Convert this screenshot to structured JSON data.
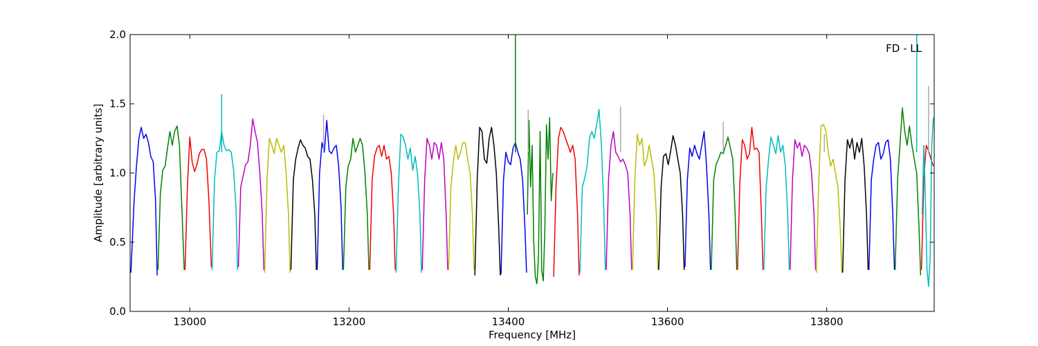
{
  "chart_data": {
    "type": "line",
    "title": "",
    "annotation": "FD - LL",
    "xlabel": "Frequency [MHz]",
    "ylabel": "Amplitude [arbitrary units]",
    "xlim": [
      12925,
      13935
    ],
    "ylim": [
      0.0,
      2.0
    ],
    "xticks": [
      13000,
      13200,
      13400,
      13600,
      13800
    ],
    "xtick_labels": [
      "13000",
      "13200",
      "13400",
      "13600",
      "13800"
    ],
    "yticks": [
      0.0,
      0.5,
      1.0,
      1.5,
      2.0
    ],
    "ytick_labels": [
      "0.0",
      "0.5",
      "1.0",
      "1.5",
      "2.0"
    ],
    "grid": false,
    "legend": "none",
    "color_cycle": [
      "#0000ee",
      "#008000",
      "#ee0000",
      "#00bbbb",
      "#bb00bb",
      "#bbbb00",
      "#000000"
    ],
    "spike_color": "#aaaaaa",
    "band_width_mhz": 16,
    "first_band_start_mhz": 12926,
    "series": [
      {
        "color": "#0000ee",
        "x": [
          12926,
          12930,
          12933,
          12936,
          12939,
          12942,
          12945,
          12948,
          12951,
          12954,
          12957,
          12959
        ],
        "y": [
          0.28,
          0.8,
          1.05,
          1.25,
          1.33,
          1.25,
          1.28,
          1.22,
          1.12,
          1.08,
          0.8,
          0.26
        ]
      },
      {
        "color": "#008000",
        "x": [
          12960,
          12963,
          12966,
          12969,
          12972,
          12975,
          12978,
          12981,
          12984,
          12987,
          12990,
          12993
        ],
        "y": [
          0.3,
          0.85,
          1.02,
          1.05,
          1.18,
          1.3,
          1.2,
          1.3,
          1.34,
          1.2,
          0.75,
          0.3
        ]
      },
      {
        "color": "#ee0000",
        "x": [
          12994,
          12997,
          13000,
          13003,
          13006,
          13009,
          13012,
          13015,
          13018,
          13021,
          13024,
          13027
        ],
        "y": [
          0.3,
          0.9,
          1.26,
          1.08,
          1.01,
          1.06,
          1.14,
          1.17,
          1.17,
          1.1,
          0.8,
          0.32
        ]
      },
      {
        "color": "#00bbbb",
        "x": [
          13028,
          13031,
          13034,
          13037,
          13040,
          13043,
          13046,
          13049,
          13052,
          13055,
          13058,
          13060
        ],
        "y": [
          0.3,
          0.95,
          1.15,
          1.16,
          1.3,
          1.2,
          1.16,
          1.17,
          1.15,
          1.02,
          0.75,
          0.3
        ]
      },
      {
        "color": "#bb00bb",
        "x": [
          13061,
          13064,
          13067,
          13070,
          13073,
          13076,
          13079,
          13082,
          13085,
          13088,
          13091,
          13093
        ],
        "y": [
          0.32,
          0.9,
          0.98,
          1.06,
          1.08,
          1.2,
          1.39,
          1.3,
          1.22,
          1.0,
          0.7,
          0.3
        ]
      },
      {
        "color": "#bbbb00",
        "x": [
          13094,
          13097,
          13100,
          13103,
          13106,
          13109,
          13112,
          13115,
          13118,
          13121,
          13124,
          13126
        ],
        "y": [
          0.28,
          0.95,
          1.25,
          1.2,
          1.14,
          1.25,
          1.2,
          1.15,
          1.2,
          1.0,
          0.7,
          0.28
        ]
      },
      {
        "color": "#000000",
        "x": [
          13127,
          13130,
          13133,
          13136,
          13139,
          13142,
          13145,
          13148,
          13151,
          13154,
          13157,
          13159
        ],
        "y": [
          0.3,
          0.95,
          1.1,
          1.18,
          1.24,
          1.2,
          1.18,
          1.12,
          1.1,
          0.95,
          0.7,
          0.3
        ]
      },
      {
        "color": "#0000ee",
        "x": [
          13160,
          13163,
          13166,
          13169,
          13172,
          13175,
          13178,
          13181,
          13184,
          13187,
          13190,
          13192
        ],
        "y": [
          0.3,
          1.0,
          1.22,
          1.15,
          1.38,
          1.16,
          1.14,
          1.18,
          1.2,
          1.05,
          0.75,
          0.3
        ]
      },
      {
        "color": "#008000",
        "x": [
          13193,
          13196,
          13199,
          13202,
          13205,
          13208,
          13211,
          13214,
          13217,
          13220,
          13223,
          13225
        ],
        "y": [
          0.3,
          0.9,
          1.05,
          1.1,
          1.25,
          1.15,
          1.2,
          1.25,
          1.2,
          1.0,
          0.7,
          0.3
        ]
      },
      {
        "color": "#ee0000",
        "x": [
          13226,
          13229,
          13232,
          13235,
          13238,
          13241,
          13244,
          13247,
          13250,
          13253,
          13256,
          13258
        ],
        "y": [
          0.3,
          0.95,
          1.12,
          1.18,
          1.2,
          1.12,
          1.2,
          1.1,
          1.12,
          1.0,
          0.7,
          0.3
        ]
      },
      {
        "color": "#00bbbb",
        "x": [
          13259,
          13262,
          13265,
          13268,
          13271,
          13274,
          13277,
          13280,
          13283,
          13286,
          13289,
          13291
        ],
        "y": [
          0.28,
          0.9,
          1.28,
          1.26,
          1.2,
          1.1,
          1.18,
          1.02,
          1.12,
          1.0,
          0.7,
          0.28
        ]
      },
      {
        "color": "#bb00bb",
        "x": [
          13292,
          13295,
          13298,
          13301,
          13304,
          13307,
          13310,
          13313,
          13316,
          13319,
          13322,
          13324
        ],
        "y": [
          0.3,
          0.95,
          1.25,
          1.2,
          1.1,
          1.22,
          1.2,
          1.1,
          1.22,
          1.1,
          0.7,
          0.3
        ]
      },
      {
        "color": "#bbbb00",
        "x": [
          13325,
          13328,
          13331,
          13334,
          13337,
          13340,
          13343,
          13346,
          13349,
          13352,
          13355,
          13357
        ],
        "y": [
          0.3,
          0.9,
          1.08,
          1.2,
          1.1,
          1.15,
          1.22,
          1.22,
          1.1,
          1.0,
          0.7,
          0.3
        ]
      },
      {
        "color": "#000000",
        "x": [
          13358,
          13361,
          13364,
          13367,
          13370,
          13373,
          13376,
          13379,
          13382,
          13385,
          13388,
          13390
        ],
        "y": [
          0.26,
          0.95,
          1.33,
          1.3,
          1.1,
          1.07,
          1.25,
          1.33,
          1.2,
          1.0,
          0.6,
          0.26
        ]
      },
      {
        "color": "#0000ee",
        "x": [
          13391,
          13394,
          13397,
          13400,
          13403,
          13406,
          13409,
          13412,
          13415,
          13418,
          13421,
          13423
        ],
        "y": [
          0.27,
          0.95,
          1.15,
          1.08,
          1.06,
          1.18,
          1.22,
          1.15,
          1.1,
          0.95,
          0.6,
          0.28
        ]
      },
      {
        "color": "#008000",
        "x": [
          13424,
          13426,
          13428,
          13430,
          13432,
          13434,
          13436,
          13438,
          13440,
          13442,
          13444,
          13446,
          13448,
          13450,
          13452,
          13454,
          13456
        ],
        "y": [
          0.7,
          1.38,
          0.9,
          1.2,
          0.5,
          0.25,
          0.2,
          0.4,
          1.3,
          0.3,
          0.22,
          0.6,
          1.35,
          1.1,
          1.4,
          0.8,
          1.0
        ]
      },
      {
        "color": "#ee0000",
        "x": [
          13457,
          13460,
          13463,
          13466,
          13469,
          13472,
          13475,
          13478,
          13481,
          13484,
          13487,
          13489
        ],
        "y": [
          0.25,
          0.9,
          1.25,
          1.33,
          1.3,
          1.25,
          1.2,
          1.15,
          1.2,
          1.1,
          0.7,
          0.26
        ]
      },
      {
        "color": "#00bbbb",
        "x": [
          13490,
          13493,
          13496,
          13499,
          13502,
          13505,
          13508,
          13511,
          13514,
          13517,
          13520,
          13522
        ],
        "y": [
          0.28,
          0.9,
          0.96,
          1.05,
          1.25,
          1.3,
          1.25,
          1.35,
          1.46,
          1.2,
          0.75,
          0.3
        ]
      },
      {
        "color": "#bb00bb",
        "x": [
          13523,
          13526,
          13529,
          13532,
          13535,
          13538,
          13541,
          13544,
          13547,
          13550,
          13553,
          13555
        ],
        "y": [
          0.3,
          0.95,
          1.2,
          1.3,
          1.15,
          1.12,
          1.08,
          1.1,
          1.06,
          1.0,
          0.7,
          0.3
        ]
      },
      {
        "color": "#bbbb00",
        "x": [
          13556,
          13559,
          13562,
          13565,
          13568,
          13571,
          13574,
          13577,
          13580,
          13583,
          13586,
          13588
        ],
        "y": [
          0.3,
          0.95,
          1.28,
          1.2,
          1.25,
          1.05,
          1.1,
          1.2,
          1.1,
          1.0,
          0.7,
          0.3
        ]
      },
      {
        "color": "#000000",
        "x": [
          13589,
          13592,
          13595,
          13598,
          13601,
          13604,
          13607,
          13610,
          13613,
          13616,
          13619,
          13621
        ],
        "y": [
          0.3,
          0.9,
          1.12,
          1.14,
          1.06,
          1.16,
          1.27,
          1.2,
          1.1,
          1.0,
          0.7,
          0.3
        ]
      },
      {
        "color": "#0000ee",
        "x": [
          13622,
          13625,
          13628,
          13631,
          13634,
          13637,
          13640,
          13643,
          13646,
          13649,
          13652,
          13654
        ],
        "y": [
          0.32,
          0.95,
          1.18,
          1.12,
          1.2,
          1.14,
          1.1,
          1.2,
          1.3,
          1.05,
          0.7,
          0.3
        ]
      },
      {
        "color": "#008000",
        "x": [
          13655,
          13658,
          13661,
          13664,
          13667,
          13670,
          13673,
          13676,
          13679,
          13682,
          13685,
          13687
        ],
        "y": [
          0.3,
          0.95,
          1.06,
          1.1,
          1.15,
          1.14,
          1.2,
          1.26,
          1.18,
          1.1,
          0.7,
          0.3
        ]
      },
      {
        "color": "#ee0000",
        "x": [
          13688,
          13691,
          13694,
          13697,
          13700,
          13703,
          13706,
          13709,
          13712,
          13715,
          13718,
          13720
        ],
        "y": [
          0.3,
          0.95,
          1.24,
          1.2,
          1.1,
          1.14,
          1.33,
          1.17,
          1.18,
          1.15,
          0.7,
          0.3
        ]
      },
      {
        "color": "#00bbbb",
        "x": [
          13721,
          13724,
          13727,
          13730,
          13733,
          13736,
          13739,
          13742,
          13745,
          13748,
          13751,
          13753
        ],
        "y": [
          0.3,
          0.9,
          1.1,
          1.26,
          1.2,
          1.14,
          1.27,
          1.15,
          1.2,
          1.05,
          0.7,
          0.3
        ]
      },
      {
        "color": "#bb00bb",
        "x": [
          13754,
          13757,
          13760,
          13763,
          13766,
          13769,
          13772,
          13775,
          13778,
          13781,
          13784,
          13786
        ],
        "y": [
          0.3,
          0.95,
          1.24,
          1.18,
          1.22,
          1.12,
          1.2,
          1.18,
          1.14,
          1.0,
          0.7,
          0.3
        ]
      },
      {
        "color": "#bbbb00",
        "x": [
          13787,
          13790,
          13793,
          13796,
          13799,
          13802,
          13805,
          13808,
          13811,
          13814,
          13817,
          13819
        ],
        "y": [
          0.28,
          0.95,
          1.34,
          1.35,
          1.3,
          1.15,
          1.05,
          1.1,
          1.0,
          0.9,
          0.6,
          0.28
        ]
      },
      {
        "color": "#000000",
        "x": [
          13820,
          13823,
          13826,
          13829,
          13832,
          13835,
          13838,
          13841,
          13844,
          13847,
          13850,
          13852
        ],
        "y": [
          0.28,
          0.95,
          1.24,
          1.18,
          1.25,
          1.1,
          1.22,
          1.15,
          1.25,
          1.05,
          0.7,
          0.3
        ]
      },
      {
        "color": "#0000ee",
        "x": [
          13853,
          13856,
          13859,
          13862,
          13865,
          13868,
          13871,
          13874,
          13877,
          13880,
          13883,
          13885
        ],
        "y": [
          0.3,
          0.95,
          1.1,
          1.2,
          1.22,
          1.1,
          1.14,
          1.22,
          1.24,
          1.1,
          0.7,
          0.3
        ]
      },
      {
        "color": "#008000",
        "x": [
          13886,
          13889,
          13892,
          13895,
          13898,
          13901,
          13904,
          13907,
          13910,
          13913,
          13916,
          13918
        ],
        "y": [
          0.3,
          0.95,
          1.2,
          1.47,
          1.3,
          1.2,
          1.34,
          1.2,
          1.1,
          1.0,
          0.6,
          0.26
        ]
      },
      {
        "color": "#ee0000",
        "x": [
          13919,
          13922,
          13925,
          13928,
          13931,
          13934
        ],
        "y": [
          0.3,
          0.95,
          1.2,
          1.16,
          1.1,
          1.05
        ]
      },
      {
        "color": "#00bbbb",
        "x": [
          13920,
          13922,
          13924,
          13926,
          13928,
          13930,
          13932,
          13934
        ],
        "y": [
          0.7,
          1.2,
          0.8,
          0.3,
          0.18,
          0.4,
          1.2,
          1.4
        ]
      }
    ],
    "spikes": [
      {
        "x": 13040,
        "y": 1.57,
        "color": "#00bbbb"
      },
      {
        "x": 13168,
        "y": 1.42,
        "color": "#aaaaaa"
      },
      {
        "x": 13409,
        "y": 2.0,
        "color": "#008000"
      },
      {
        "x": 13425,
        "y": 1.46,
        "color": "#aaaaaa"
      },
      {
        "x": 13541,
        "y": 1.48,
        "color": "#aaaaaa"
      },
      {
        "x": 13670,
        "y": 1.37,
        "color": "#aaaaaa"
      },
      {
        "x": 13797,
        "y": 1.28,
        "color": "#aaaaaa"
      },
      {
        "x": 13913,
        "y": 2.0,
        "color": "#00bbbb"
      },
      {
        "x": 13928,
        "y": 1.63,
        "color": "#aaaaaa"
      }
    ]
  }
}
